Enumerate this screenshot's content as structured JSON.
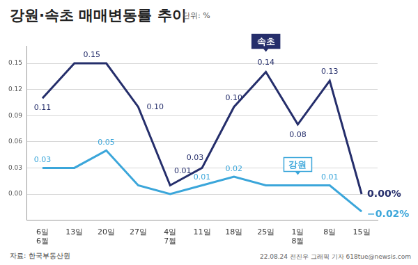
{
  "chart_data": {
    "type": "line",
    "title": "강원·속초 매매변동률 추이",
    "subtitle": "단위: %",
    "categories": [
      [
        "6일",
        "6월"
      ],
      "13일",
      "20일",
      "27일",
      [
        "4일",
        "7월"
      ],
      "11일",
      "18일",
      "25일",
      [
        "1일",
        "8월"
      ],
      "8일",
      "15일"
    ],
    "series": [
      {
        "name": "속초",
        "color": "#252e6b",
        "values": [
          0.11,
          0.15,
          0.15,
          0.1,
          0.01,
          0.03,
          0.1,
          0.14,
          0.08,
          0.13,
          0.0
        ],
        "value_labels": [
          "0.11",
          "0.15",
          null,
          "0.10",
          "0.01",
          "0.03",
          "0.10",
          "0.14",
          "0.08",
          "0.13",
          "0.00%"
        ]
      },
      {
        "name": "강원",
        "color": "#3ba6da",
        "values": [
          0.03,
          0.03,
          0.05,
          0.01,
          0.0,
          0.01,
          0.02,
          0.01,
          0.01,
          0.01,
          -0.02
        ],
        "value_labels": [
          "0.03",
          null,
          "0.05",
          null,
          null,
          "0.01",
          "0.02",
          null,
          null,
          "0.01",
          "−0.02%"
        ]
      }
    ],
    "ylim": [
      -0.03,
      0.17
    ],
    "yticks": [
      {
        "value": 0,
        "label": "0.00"
      },
      {
        "value": 0.03,
        "label": "0.03"
      },
      {
        "value": 0.06,
        "label": "0.06"
      },
      {
        "value": 0.09,
        "label": "0.09"
      },
      {
        "value": 0.12,
        "label": "0.12"
      },
      {
        "value": 0.15,
        "label": "0.15"
      }
    ],
    "grid": true,
    "data_labels": true,
    "annotations": [
      "자료: 한국부동산원",
      "22.08.24 전진우 그래픽 기자 618tue@newsis.com"
    ]
  }
}
